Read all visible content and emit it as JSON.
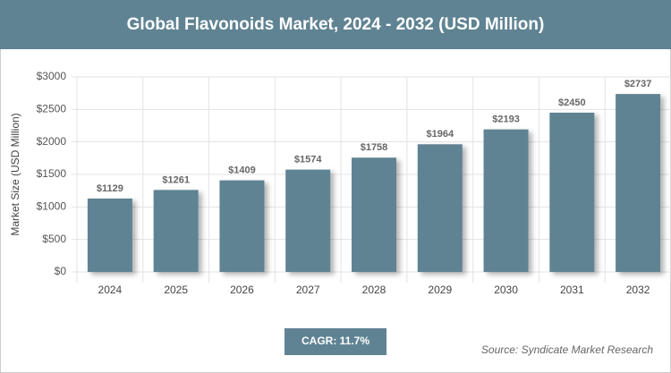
{
  "chart_data": {
    "type": "bar",
    "title": "Global Flavonoids Market, 2024 - 2032 (USD Million)",
    "y_label": "Market Size (USD Million)",
    "categories": [
      "2024",
      "2025",
      "2026",
      "2027",
      "2028",
      "2029",
      "2030",
      "2031",
      "2032"
    ],
    "values": [
      1129,
      1261,
      1409,
      1574,
      1758,
      1964,
      2193,
      2450,
      2737
    ],
    "value_labels": [
      "$1129",
      "$1261",
      "$1409",
      "$1574",
      "$1758",
      "$1964",
      "$2193",
      "$2450",
      "$2737"
    ],
    "color": "#5f8393",
    "ylim": [
      0,
      3000
    ],
    "yticks": [
      {
        "value": 0,
        "label": "$0"
      },
      {
        "value": 500,
        "label": "$500"
      },
      {
        "value": 1000,
        "label": "$1000"
      },
      {
        "value": 1500,
        "label": "$1500"
      },
      {
        "value": 2000,
        "label": "$2000"
      },
      {
        "value": 2500,
        "label": "$2500"
      },
      {
        "value": 3000,
        "label": "$3000"
      }
    ],
    "grid": true,
    "cagr": "CAGR: 11.7%",
    "source": "Source: Syndicate Market Research"
  }
}
